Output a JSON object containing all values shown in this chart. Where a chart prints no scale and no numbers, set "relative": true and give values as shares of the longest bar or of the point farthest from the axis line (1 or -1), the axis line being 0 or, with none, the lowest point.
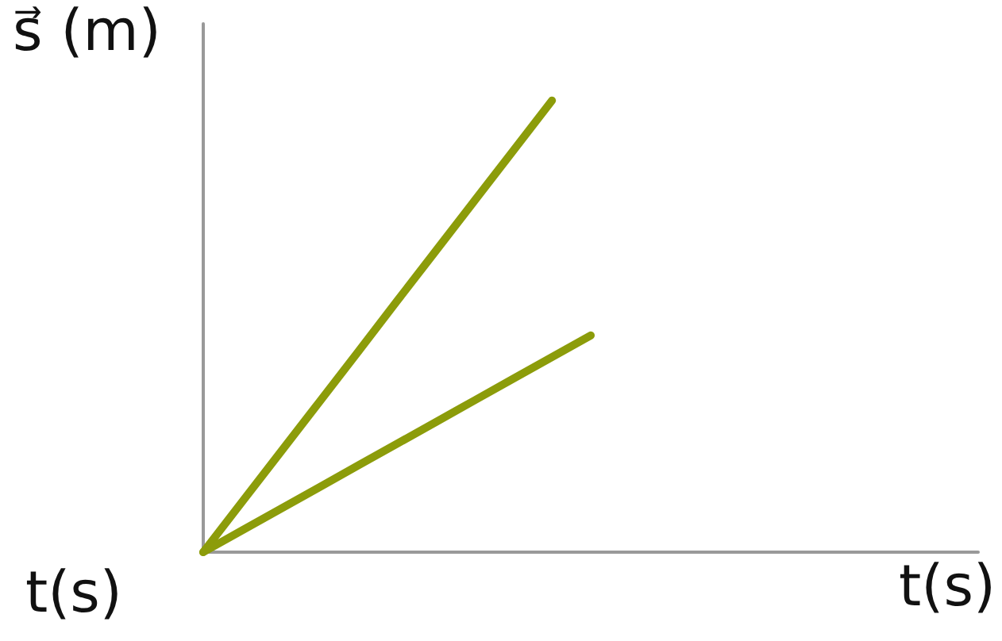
{
  "chart_data": {
    "type": "line",
    "relative": true,
    "ylabel": "s⃗ (m)",
    "xlabel": "t(s)",
    "marker": "none",
    "line_style": "solid",
    "annotations": [
      "t(s)"
    ],
    "categories": [
      null,
      null,
      null,
      null,
      null,
      null,
      null,
      null,
      null,
      null,
      null,
      null,
      null,
      null,
      null,
      null,
      null,
      null,
      null,
      null,
      null
    ],
    "series": [
      {
        "color": "#8c9c0a",
        "values": [
          0,
          0.111,
          0.222,
          0.333,
          0.444,
          0.556,
          0.667,
          0.778,
          0.889,
          1,
          null,
          null,
          null,
          null,
          null,
          null,
          null,
          null,
          null,
          null,
          null
        ]
      },
      {
        "color": "#8c9c0a",
        "values": [
          0,
          0.048,
          0.096,
          0.144,
          0.192,
          0.24,
          0.288,
          0.336,
          0.384,
          0.432,
          0.48,
          null,
          null,
          null,
          null,
          null,
          null,
          null,
          null,
          null,
          null
        ]
      }
    ]
  }
}
